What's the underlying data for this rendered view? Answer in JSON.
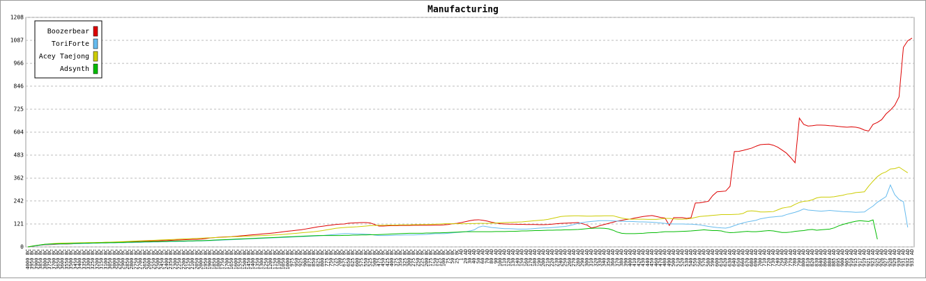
{
  "chart_data": {
    "type": "line",
    "title": "Manufacturing",
    "categories": [
      "4000 BC",
      "3950 BC",
      "3900 BC",
      "3850 BC",
      "3800 BC",
      "3750 BC",
      "3700 BC",
      "3650 BC",
      "3600 BC",
      "3550 BC",
      "3500 BC",
      "3450 BC",
      "3400 BC",
      "3350 BC",
      "3300 BC",
      "3250 BC",
      "3200 BC",
      "3150 BC",
      "3100 BC",
      "3050 BC",
      "3000 BC",
      "2950 BC",
      "2900 BC",
      "2850 BC",
      "2800 BC",
      "2750 BC",
      "2700 BC",
      "2650 BC",
      "2600 BC",
      "2550 BC",
      "2500 BC",
      "2450 BC",
      "2400 BC",
      "2350 BC",
      "2300 BC",
      "2250 BC",
      "2200 BC",
      "2150 BC",
      "2100 BC",
      "2050 BC",
      "2000 BC",
      "1950 BC",
      "1900 BC",
      "1850 BC",
      "1800 BC",
      "1750 BC",
      "1700 BC",
      "1650 BC",
      "1600 BC",
      "1550 BC",
      "1500 BC",
      "1450 BC",
      "1400 BC",
      "1350 BC",
      "1300 BC",
      "1250 BC",
      "1200 BC",
      "1150 BC",
      "1100 BC",
      "1050 BC",
      "1000 BC",
      "975 BC",
      "950 BC",
      "925 BC",
      "900 BC",
      "875 BC",
      "850 BC",
      "825 BC",
      "800 BC",
      "775 BC",
      "750 BC",
      "725 BC",
      "700 BC",
      "675 BC",
      "650 BC",
      "625 BC",
      "600 BC",
      "575 BC",
      "550 BC",
      "525 BC",
      "500 BC",
      "475 BC",
      "450 BC",
      "425 BC",
      "400 BC",
      "375 BC",
      "350 BC",
      "325 BC",
      "300 BC",
      "275 BC",
      "250 BC",
      "225 BC",
      "200 BC",
      "175 BC",
      "150 BC",
      "125 BC",
      "100 BC",
      "75 BC",
      "50 BC",
      "25 BC",
      "1 AD",
      "20 AD",
      "30 AD",
      "40 AD",
      "50 AD",
      "60 AD",
      "70 AD",
      "80 AD",
      "90 AD",
      "100 AD",
      "110 AD",
      "120 AD",
      "130 AD",
      "140 AD",
      "150 AD",
      "160 AD",
      "170 AD",
      "180 AD",
      "190 AD",
      "200 AD",
      "210 AD",
      "220 AD",
      "230 AD",
      "240 AD",
      "250 AD",
      "260 AD",
      "270 AD",
      "280 AD",
      "290 AD",
      "300 AD",
      "310 AD",
      "320 AD",
      "330 AD",
      "340 AD",
      "350 AD",
      "360 AD",
      "370 AD",
      "380 AD",
      "390 AD",
      "400 AD",
      "410 AD",
      "420 AD",
      "430 AD",
      "440 AD",
      "450 AD",
      "460 AD",
      "470 AD",
      "480 AD",
      "490 AD",
      "500 AD",
      "510 AD",
      "520 AD",
      "530 AD",
      "540 AD",
      "550 AD",
      "560 AD",
      "570 AD",
      "580 AD",
      "590 AD",
      "600 AD",
      "610 AD",
      "620 AD",
      "630 AD",
      "640 AD",
      "650 AD",
      "660 AD",
      "670 AD",
      "680 AD",
      "690 AD",
      "700 AD",
      "710 AD",
      "720 AD",
      "730 AD",
      "740 AD",
      "750 AD",
      "760 AD",
      "770 AD",
      "780 AD",
      "790 AD",
      "800 AD",
      "810 AD",
      "820 AD",
      "830 AD",
      "840 AD",
      "860 AD",
      "880 AD",
      "885 AD",
      "895 AD",
      "900 AD",
      "905 AD",
      "910 AD",
      "915 AD",
      "917 AD",
      "919 AD",
      "921 AD",
      "923 AD",
      "925 AD",
      "926 AD",
      "927 AD",
      "928 AD",
      "929 AD",
      "930 AD",
      "931 AD",
      "932 AD",
      "933 AD"
    ],
    "series": [
      {
        "name": "Boozerbear",
        "color": "#dd0000",
        "values": [
          0,
          3,
          6,
          9,
          11,
          12,
          13,
          14,
          15,
          15,
          16,
          17,
          18,
          19,
          19,
          20,
          21,
          22,
          22,
          23,
          24,
          25,
          26,
          27,
          28,
          29,
          30,
          30,
          31,
          32,
          32,
          33,
          34,
          35,
          36,
          37,
          38,
          39,
          40,
          40,
          41,
          44,
          47,
          49,
          51,
          52,
          53,
          54,
          56,
          58,
          60,
          62,
          64,
          66,
          68,
          70,
          72,
          74,
          77,
          80,
          83,
          85,
          88,
          90,
          94,
          98,
          102,
          106,
          109,
          112,
          115,
          118,
          120,
          121,
          125,
          126,
          127,
          128,
          128,
          126,
          118,
          110,
          110,
          111,
          112,
          112,
          113,
          113,
          113,
          114,
          114,
          114,
          114,
          114,
          115,
          115,
          116,
          118,
          122,
          124,
          128,
          133,
          138,
          142,
          143,
          140,
          136,
          130,
          126,
          122,
          121,
          120,
          120,
          119,
          119,
          118,
          118,
          118,
          117,
          117,
          118,
          120,
          122,
          124,
          125,
          126,
          127,
          128,
          122,
          115,
          100,
          105,
          112,
          118,
          124,
          130,
          136,
          140,
          144,
          147,
          152,
          156,
          160,
          163,
          165,
          160,
          155,
          152,
          113,
          154,
          154,
          154,
          150,
          154,
          231,
          232,
          236,
          240,
          270,
          290,
          292,
          294,
          319,
          502,
          503,
          508,
          514,
          520,
          530,
          538,
          540,
          541,
          535,
          525,
          510,
          494,
          470,
          443,
          678,
          645,
          636,
          638,
          641,
          641,
          640,
          638,
          637,
          634,
          632,
          630,
          632,
          630,
          625,
          615,
          610,
          645,
          655,
          670,
          700,
          720,
          745,
          790,
          1050,
          1085,
          1099
        ]
      },
      {
        "name": "ToriForte",
        "color": "#66bbee",
        "values": [
          0,
          3,
          6,
          9,
          12,
          13,
          14,
          15,
          15,
          16,
          16,
          17,
          17,
          18,
          18,
          19,
          19,
          20,
          20,
          21,
          21,
          22,
          22,
          23,
          23,
          24,
          24,
          25,
          25,
          26,
          26,
          27,
          27,
          28,
          28,
          29,
          29,
          30,
          30,
          31,
          31,
          32,
          33,
          34,
          35,
          36,
          37,
          38,
          39,
          40,
          41,
          42,
          43,
          44,
          45,
          46,
          47,
          48,
          49,
          50,
          51,
          52,
          53,
          54,
          55,
          56,
          57,
          58,
          60,
          62,
          64,
          66,
          68,
          70,
          70,
          69,
          68,
          68,
          67,
          66,
          62,
          60,
          60,
          60,
          61,
          62,
          62,
          63,
          63,
          63,
          64,
          65,
          66,
          68,
          70,
          70,
          70,
          72,
          74,
          76,
          78,
          80,
          84,
          90,
          104,
          110,
          106,
          102,
          100,
          98,
          96,
          96,
          95,
          94,
          94,
          94,
          95,
          97,
          99,
          100,
          100,
          102,
          104,
          106,
          108,
          112,
          118,
          124,
          128,
          132,
          134,
          136,
          138,
          138,
          138,
          137,
          136,
          135,
          134,
          134,
          133,
          132,
          132,
          131,
          130,
          128,
          126,
          124,
          122,
          121,
          121,
          121,
          120,
          120,
          118,
          116,
          112,
          108,
          105,
          102,
          100,
          99,
          104,
          112,
          120,
          126,
          132,
          136,
          140,
          148,
          152,
          156,
          158,
          160,
          162,
          170,
          176,
          182,
          190,
          200,
          194,
          192,
          190,
          188,
          190,
          192,
          190,
          188,
          186,
          185,
          184,
          182,
          183,
          184,
          200,
          215,
          235,
          250,
          265,
          326,
          275,
          250,
          238,
          103,
          null
        ]
      },
      {
        "name": "Acey Taejong",
        "color": "#cccc00",
        "values": [
          0,
          4,
          8,
          11,
          14,
          16,
          18,
          19,
          20,
          20,
          21,
          21,
          22,
          22,
          23,
          23,
          24,
          24,
          25,
          25,
          26,
          27,
          28,
          29,
          30,
          31,
          32,
          33,
          34,
          35,
          36,
          37,
          38,
          39,
          40,
          41,
          42,
          43,
          44,
          45,
          46,
          47,
          48,
          49,
          50,
          51,
          52,
          53,
          54,
          55,
          56,
          57,
          58,
          59,
          60,
          61,
          62,
          63,
          64,
          66,
          68,
          70,
          72,
          74,
          76,
          78,
          80,
          83,
          86,
          90,
          94,
          98,
          100,
          102,
          104,
          105,
          106,
          108,
          110,
          112,
          113,
          114,
          114,
          115,
          115,
          115,
          116,
          116,
          116,
          117,
          117,
          118,
          118,
          119,
          120,
          121,
          122,
          122,
          122,
          122,
          122,
          122,
          123,
          123,
          124,
          124,
          124,
          125,
          126,
          127,
          128,
          129,
          130,
          131,
          132,
          134,
          136,
          138,
          140,
          142,
          145,
          150,
          155,
          160,
          162,
          163,
          164,
          164,
          163,
          162,
          162,
          163,
          163,
          164,
          164,
          164,
          158,
          152,
          148,
          146,
          146,
          146,
          146,
          145,
          145,
          145,
          148,
          150,
          150,
          148,
          146,
          146,
          147,
          150,
          155,
          160,
          162,
          164,
          166,
          168,
          170,
          170,
          170,
          171,
          172,
          176,
          188,
          190,
          188,
          184,
          184,
          185,
          186,
          195,
          204,
          208,
          212,
          224,
          234,
          240,
          242,
          248,
          258,
          262,
          262,
          262,
          264,
          268,
          272,
          278,
          280,
          286,
          288,
          290,
          320,
          346,
          370,
          386,
          395,
          410,
          412,
          420,
          405,
          390,
          null
        ]
      },
      {
        "name": "Adsynth",
        "color": "#00bb00",
        "values": [
          0,
          4,
          8,
          11,
          14,
          15,
          16,
          17,
          17,
          18,
          18,
          19,
          19,
          20,
          20,
          21,
          21,
          22,
          22,
          23,
          23,
          24,
          24,
          25,
          25,
          26,
          26,
          27,
          27,
          28,
          28,
          29,
          29,
          30,
          30,
          31,
          31,
          32,
          32,
          33,
          33,
          34,
          35,
          36,
          37,
          38,
          39,
          40,
          41,
          42,
          43,
          44,
          45,
          46,
          47,
          48,
          49,
          50,
          51,
          52,
          53,
          54,
          55,
          56,
          57,
          58,
          59,
          60,
          60,
          60,
          60,
          60,
          60,
          61,
          61,
          62,
          62,
          63,
          63,
          64,
          64,
          65,
          66,
          67,
          68,
          69,
          70,
          71,
          72,
          72,
          72,
          72,
          73,
          73,
          74,
          74,
          75,
          76,
          77,
          78,
          79,
          80,
          80,
          80,
          80,
          80,
          80,
          80,
          81,
          81,
          81,
          82,
          82,
          83,
          84,
          84,
          85,
          86,
          86,
          87,
          88,
          88,
          89,
          89,
          90,
          90,
          91,
          92,
          94,
          96,
          98,
          99,
          99,
          98,
          95,
          88,
          78,
          72,
          70,
          70,
          70,
          71,
          72,
          74,
          75,
          75,
          78,
          80,
          80,
          80,
          81,
          82,
          83,
          84,
          86,
          88,
          90,
          88,
          86,
          86,
          84,
          78,
          75,
          76,
          78,
          80,
          82,
          80,
          80,
          82,
          84,
          86,
          84,
          80,
          76,
          76,
          78,
          82,
          84,
          86,
          90,
          92,
          88,
          90,
          92,
          94,
          100,
          110,
          118,
          124,
          130,
          135,
          138,
          136,
          134,
          142,
          40,
          null,
          null,
          null,
          null,
          null,
          null,
          null,
          null
        ]
      }
    ],
    "ylim": [
      0,
      1208
    ],
    "yticks": [
      0,
      121,
      242,
      362,
      483,
      604,
      725,
      846,
      966,
      1087,
      1208
    ],
    "grid": true,
    "legend": "top-left"
  }
}
